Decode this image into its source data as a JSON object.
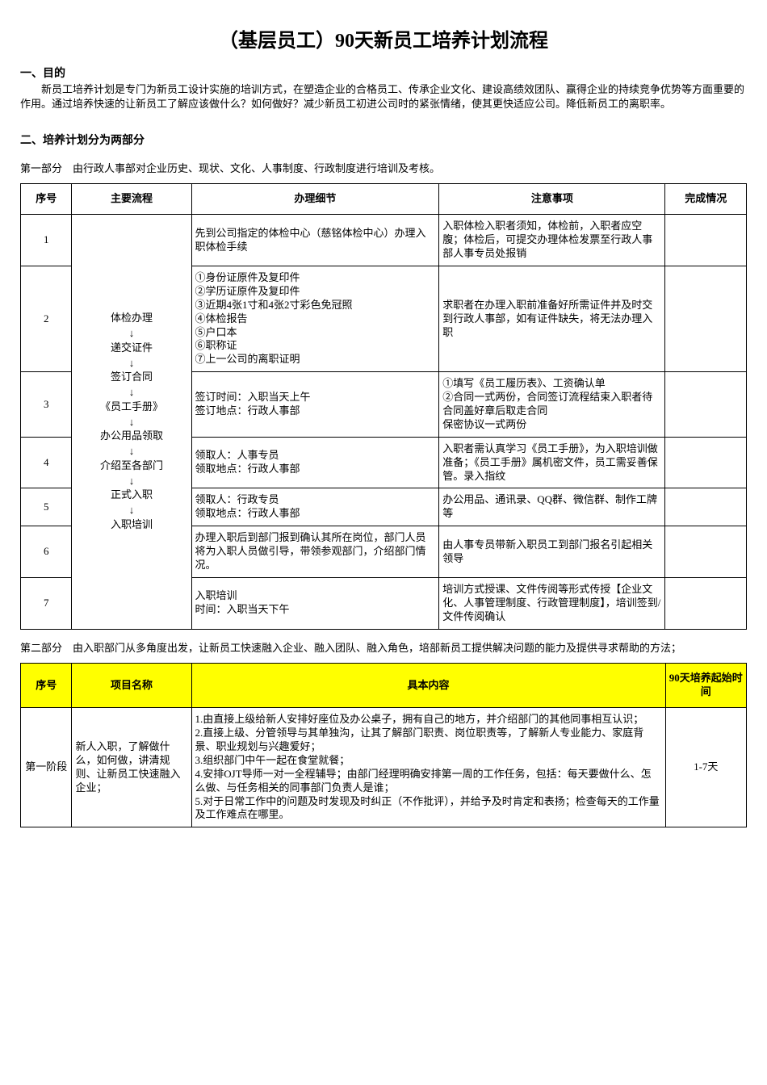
{
  "title": "（基层员工）90天新员工培养计划流程",
  "section1": {
    "heading": "一、目的",
    "text": "新员工培养计划是专门为新员工设计实施的培训方式，在塑造企业的合格员工、传承企业文化、建设高绩效团队、赢得企业的持续竞争优势等方面重要的作用。通过培养快速的让新员工了解应该做什么？如何做好？减少新员工初进公司时的紧张情绪，使其更快适应公司。降低新员工的离职率。"
  },
  "section2": {
    "heading": "二、培养计划分为两部分",
    "part1_title": "第一部分　由行政人事部对企业历史、现状、文化、人事制度、行政制度进行培训及考核。",
    "part2_title": "第二部分　由入职部门从多角度出发，让新员工快速融入企业、融入团队、融入角色，培部新员工提供解决问题的能力及提供寻求帮助的方法；"
  },
  "table1": {
    "headers": {
      "seq": "序号",
      "flow": "主要流程",
      "detail": "办理细节",
      "note": "注意事项",
      "status": "完成情况"
    },
    "flow_steps": [
      "体检办理",
      "递交证件",
      "签订合同",
      "《员工手册》",
      "办公用品领取",
      "介绍至各部门",
      "正式入职",
      "入职培训"
    ],
    "rows": [
      {
        "seq": "1",
        "detail": "先到公司指定的体检中心（慈铭体检中心）办理入职体检手续",
        "note": "入职体检入职者须知，体检前，入职者应空腹；体检后，可提交办理体检发票至行政人事部人事专员处报销",
        "status": ""
      },
      {
        "seq": "2",
        "detail": "①身份证原件及复印件\n②学历证原件及复印件\n③近期4张1寸和4张2寸彩色免冠照\n④体检报告\n⑤户口本\n⑥职称证\n⑦上一公司的离职证明",
        "note": "求职者在办理入职前准备好所需证件并及时交到行政人事部，如有证件缺失，将无法办理入职",
        "status": ""
      },
      {
        "seq": "3",
        "detail": "签订时间：入职当天上午\n签订地点：行政人事部",
        "note": "①填写《员工履历表》、工资确认单\n②合同一式两份，合同签订流程结束入职者待合同盖好章后取走合同\n保密协议一式两份",
        "status": ""
      },
      {
        "seq": "4",
        "detail": "领取人：人事专员\n领取地点：行政人事部",
        "note": "入职者需认真学习《员工手册》，为入职培训做准备；《员工手册》属机密文件，员工需妥善保管。录入指纹",
        "status": ""
      },
      {
        "seq": "5",
        "detail": "领取人：行政专员\n领取地点：行政人事部",
        "note": "办公用品、通讯录、QQ群、微信群、制作工牌 等",
        "status": ""
      },
      {
        "seq": "6",
        "detail": "办理入职后到部门报到确认其所在岗位，部门人员将为入职人员做引导，带领参观部门，介绍部门情况。",
        "note": "由人事专员带新入职员工到部门报名引起相关领导",
        "status": ""
      },
      {
        "seq": "7",
        "detail": "入职培训\n时间：入职当天下午",
        "note": "培训方式授课、文件传阅等形式传授【企业文化、人事管理制度、行政管理制度】，培训签到/文件传阅确认",
        "status": ""
      }
    ]
  },
  "table2": {
    "headers": {
      "seq": "序号",
      "name": "项目名称",
      "content": "具本内容",
      "time": "90天培养起始时间"
    },
    "rows": [
      {
        "seq": "第一阶段",
        "name": "新人入职，了解做什么，如何做，讲清规则、让新员工快速融入企业；",
        "content": "1.由直接上级给新人安排好座位及办公桌子，拥有自己的地方，并介绍部门的其他同事相互认识；\n2.直接上级、分管领导与其单独沟，让其了解部门职责、岗位职责等，了解新人专业能力、家庭背景、职业规划与兴趣爱好；\n3.组织部门中午一起在食堂就餐；\n4.安排OJT导师一对一全程辅导；由部门经理明确安排第一周的工作任务，包括：每天要做什么、怎么做、与任务相关的同事部门负责人是谁；\n5.对于日常工作中的问题及时发现及时纠正（不作批评），并给予及时肯定和表扬；检查每天的工作量及工作难点在哪里。",
        "time": "1-7天"
      }
    ]
  }
}
